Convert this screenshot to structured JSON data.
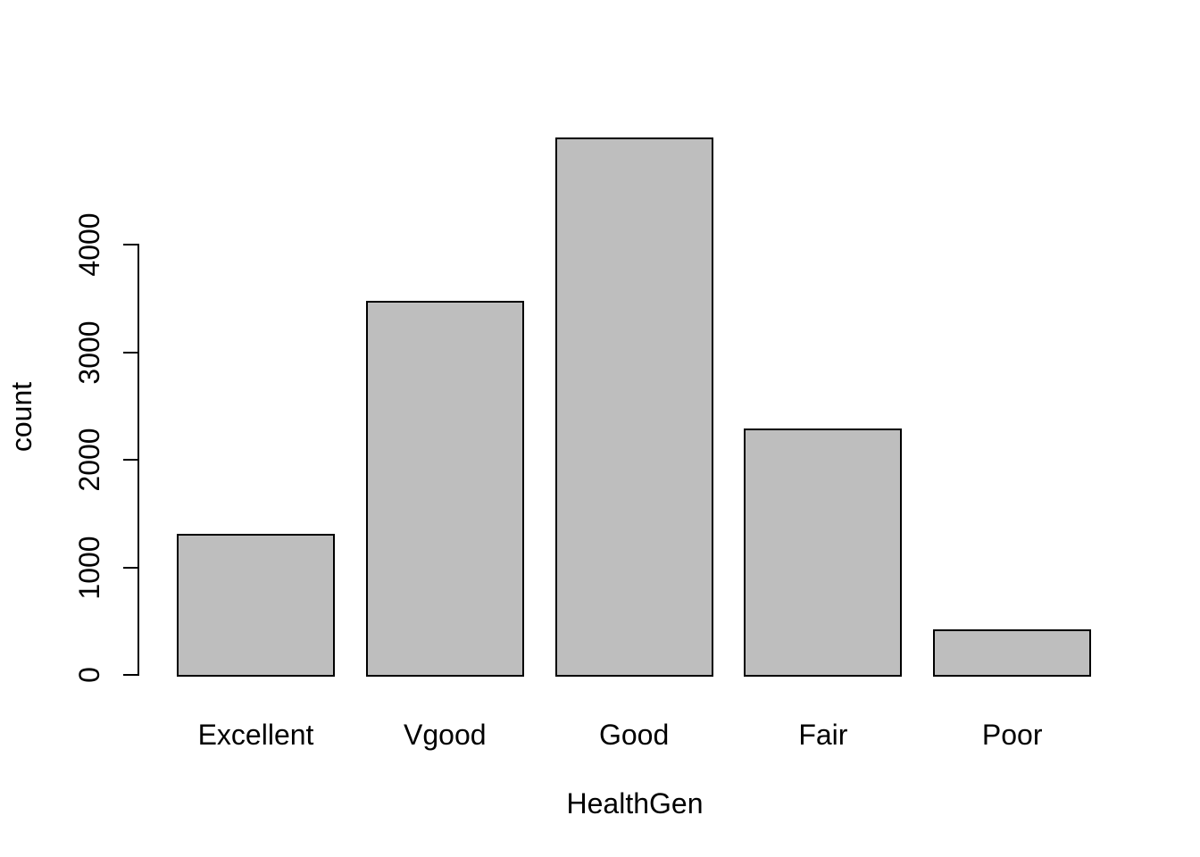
{
  "chart_data": {
    "type": "bar",
    "categories": [
      "Excellent",
      "Vgood",
      "Good",
      "Fair",
      "Poor"
    ],
    "values": [
      1310,
      3480,
      5000,
      2290,
      425
    ],
    "title": "",
    "xlabel": "HealthGen",
    "ylabel": "count",
    "ylim": [
      0,
      5200
    ],
    "yticks": [
      0,
      1000,
      2000,
      3000,
      4000
    ],
    "ytick_labels": [
      "0",
      "1000",
      "2000",
      "3000",
      "4000"
    ],
    "grid": false,
    "legend": false,
    "bar_fill_color": "#BEBEBE",
    "bar_border_color": "#000000",
    "axis_color": "#000000",
    "text_color": "#000000"
  }
}
